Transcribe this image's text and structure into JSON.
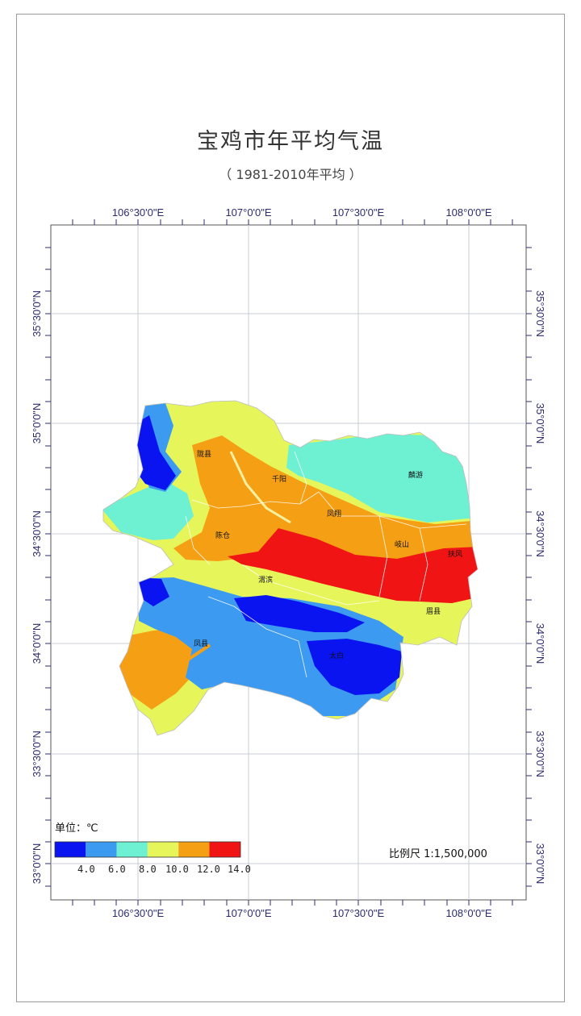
{
  "title": "宝鸡市年平均气温",
  "subtitle": "（ 1981-2010年平均 ）",
  "longitude_labels": [
    "106°30'0\"E",
    "107°0'0\"E",
    "107°30'0\"E",
    "108°0'0\"E"
  ],
  "latitude_labels": [
    "35°30'0\"N",
    "35°0'0\"N",
    "34°30'0\"N",
    "34°0'0\"N",
    "33°30'0\"N",
    "33°0'0\"N"
  ],
  "cities": [
    "陇县",
    "千阳",
    "麟游",
    "凤翔",
    "陈仓",
    "岐山",
    "扶风",
    "渭滨",
    "眉县",
    "凤县",
    "太白"
  ],
  "legend": {
    "unit_label": "单位：℃",
    "colors": [
      "#0a14f0",
      "#3c9bf0",
      "#6ef0d2",
      "#e6f55a",
      "#f5a014",
      "#f01414"
    ],
    "breaks": [
      "4.0",
      "6.0",
      "8.0",
      "10.0",
      "12.0",
      "14.0"
    ]
  },
  "scale_label": "比例尺  1:1,500,000",
  "temperature_zone_colors": {
    "cold": "#0a14f0",
    "cool": "#3c9bf0",
    "mild": "#6ef0d2",
    "warm": "#e6f55a",
    "hot": "#f5a014",
    "hottest": "#f01414"
  }
}
